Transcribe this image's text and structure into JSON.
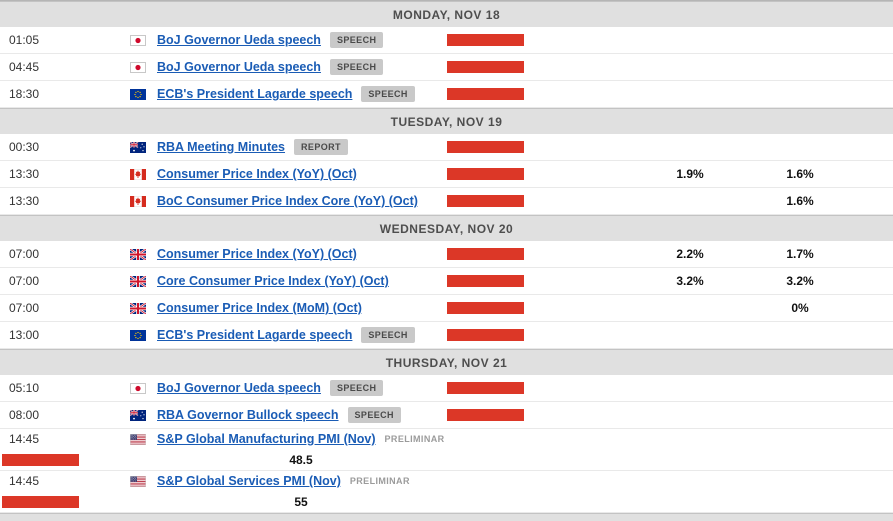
{
  "colors": {
    "importance_bar": "#dc3727",
    "link": "#1a5cb5",
    "day_header_bg": "#e0e0e0",
    "badge_bg": "#c9c9c9"
  },
  "sections": [
    {
      "header": "MONDAY, NOV 18",
      "rows": [
        {
          "time": "01:05",
          "country": "jp",
          "title": "BoJ Governor Ueda speech",
          "tag": {
            "label": "SPEECH",
            "type": "badge"
          },
          "bar": true,
          "consensus": "",
          "previous": ""
        },
        {
          "time": "04:45",
          "country": "jp",
          "title": "BoJ Governor Ueda speech",
          "tag": {
            "label": "SPEECH",
            "type": "badge"
          },
          "bar": true,
          "consensus": "",
          "previous": ""
        },
        {
          "time": "18:30",
          "country": "eu",
          "title": "ECB's President Lagarde speech",
          "tag": {
            "label": "SPEECH",
            "type": "badge"
          },
          "bar": true,
          "consensus": "",
          "previous": ""
        }
      ]
    },
    {
      "header": "TUESDAY, NOV 19",
      "rows": [
        {
          "time": "00:30",
          "country": "au",
          "title": "RBA Meeting Minutes",
          "tag": {
            "label": "REPORT",
            "type": "badge"
          },
          "bar": true,
          "consensus": "",
          "previous": ""
        },
        {
          "time": "13:30",
          "country": "ca",
          "title": "Consumer Price Index (YoY) (Oct)",
          "bar": true,
          "consensus": "1.9%",
          "previous": "1.6%"
        },
        {
          "time": "13:30",
          "country": "ca",
          "title": "BoC Consumer Price Index Core (YoY) (Oct)",
          "bar": true,
          "consensus": "",
          "previous": "1.6%"
        }
      ]
    },
    {
      "header": "WEDNESDAY, NOV 20",
      "rows": [
        {
          "time": "07:00",
          "country": "gb",
          "title": "Consumer Price Index (YoY) (Oct)",
          "bar": true,
          "consensus": "2.2%",
          "previous": "1.7%"
        },
        {
          "time": "07:00",
          "country": "gb",
          "title": "Core Consumer Price Index (YoY) (Oct)",
          "bar": true,
          "consensus": "3.2%",
          "previous": "3.2%"
        },
        {
          "time": "07:00",
          "country": "gb",
          "title": "Consumer Price Index (MoM) (Oct)",
          "bar": true,
          "consensus": "",
          "previous": "0%"
        },
        {
          "time": "13:00",
          "country": "eu",
          "title": "ECB's President Lagarde speech",
          "tag": {
            "label": "SPEECH",
            "type": "badge"
          },
          "bar": true,
          "consensus": "",
          "previous": ""
        }
      ]
    },
    {
      "header": "THURSDAY, NOV 21",
      "rows": [
        {
          "time": "05:10",
          "country": "jp",
          "title": "BoJ Governor Ueda speech",
          "tag": {
            "label": "SPEECH",
            "type": "badge"
          },
          "bar": true,
          "consensus": "",
          "previous": ""
        },
        {
          "time": "08:00",
          "country": "au",
          "title": "RBA Governor Bullock speech",
          "tag": {
            "label": "SPEECH",
            "type": "badge"
          },
          "bar": true,
          "consensus": "",
          "previous": ""
        },
        {
          "time": "14:45",
          "country": "us",
          "title": "S&P Global Manufacturing PMI (Nov)",
          "tag": {
            "label": "PRELIMINAR",
            "type": "plain"
          },
          "bar": true,
          "consensus": "",
          "previous": "48.5",
          "tall": true
        },
        {
          "time": "14:45",
          "country": "us",
          "title": "S&P Global Services PMI (Nov)",
          "tag": {
            "label": "PRELIMINAR",
            "type": "plain"
          },
          "bar": true,
          "consensus": "",
          "previous": "55",
          "tall": true
        }
      ]
    }
  ]
}
